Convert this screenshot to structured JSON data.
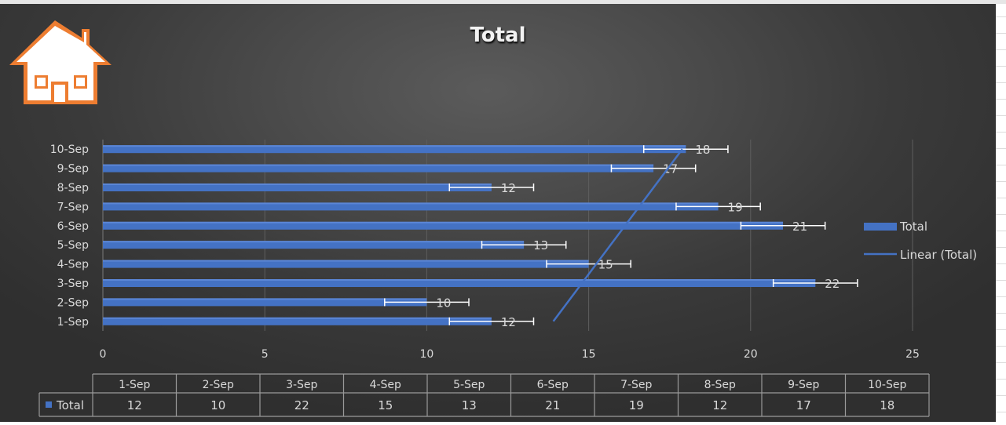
{
  "chart_data": {
    "type": "bar",
    "orientation": "horizontal",
    "title": "Total",
    "categories": [
      "1-Sep",
      "2-Sep",
      "3-Sep",
      "4-Sep",
      "5-Sep",
      "6-Sep",
      "7-Sep",
      "8-Sep",
      "9-Sep",
      "10-Sep"
    ],
    "series": [
      {
        "name": "Total",
        "values": [
          12,
          10,
          22,
          15,
          13,
          21,
          19,
          12,
          17,
          18
        ],
        "color": "#4472c4"
      }
    ],
    "error_bars": {
      "plus_minus": 1.3,
      "color": "#ffffff"
    },
    "trendline": {
      "name": "Linear (Total)",
      "type": "linear",
      "color": "#4472c4"
    },
    "x_axis": {
      "min": 0,
      "max": 25,
      "major_unit": 5,
      "ticks": [
        0,
        5,
        10,
        15,
        20,
        25
      ]
    },
    "grid": true,
    "legend": {
      "position": "right",
      "entries": [
        "Total",
        "Linear (Total)"
      ]
    },
    "data_labels": true,
    "data_table": {
      "headers": [
        "1-Sep",
        "2-Sep",
        "3-Sep",
        "4-Sep",
        "5-Sep",
        "6-Sep",
        "7-Sep",
        "8-Sep",
        "9-Sep",
        "10-Sep"
      ],
      "row_label": "Total",
      "values": [
        12,
        10,
        22,
        15,
        13,
        21,
        19,
        12,
        17,
        18
      ]
    }
  },
  "colors": {
    "bar": "#4472c4",
    "background": "#404040",
    "text": "#d9d9d9",
    "house_icon": "#ed7d31"
  },
  "icons": {
    "home": "house-icon"
  }
}
